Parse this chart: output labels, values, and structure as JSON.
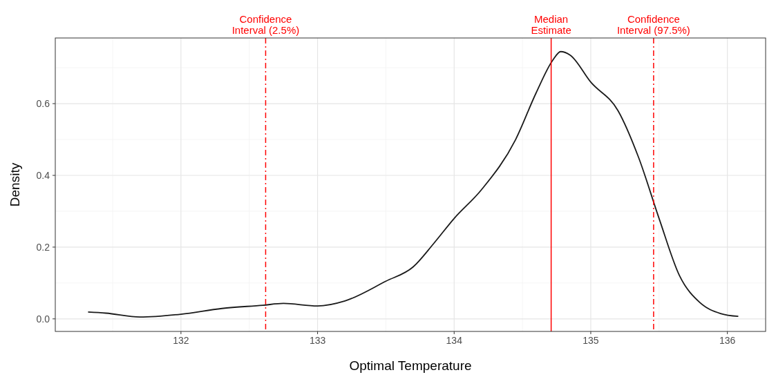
{
  "chart_data": {
    "type": "line",
    "xlabel": "Optimal Temperature",
    "ylabel": "Density",
    "xlim": [
      131.08,
      136.28
    ],
    "xticks": [
      132,
      133,
      134,
      135,
      136
    ],
    "ylim": [
      -0.035,
      0.783
    ],
    "yticks": [
      {
        "value": 0,
        "label": "0.0"
      },
      {
        "value": 0.2,
        "label": "0.2"
      },
      {
        "value": 0.4,
        "label": "0.4"
      },
      {
        "value": 0.6,
        "label": "0.6"
      }
    ],
    "grid": true,
    "line_style": "solid",
    "series": [
      {
        "color": "#1a1a1a",
        "x": [
          131.32,
          131.45,
          131.7,
          132.0,
          132.3,
          132.6,
          132.75,
          133.0,
          133.2,
          133.5,
          133.7,
          133.85,
          134.0,
          134.2,
          134.45,
          134.6,
          134.72,
          134.78,
          134.85,
          135.0,
          135.2,
          135.35,
          135.5,
          135.65,
          135.8,
          135.95,
          136.08
        ],
        "values": [
          0.019,
          0.016,
          0.005,
          0.013,
          0.029,
          0.038,
          0.043,
          0.036,
          0.05,
          0.105,
          0.145,
          0.21,
          0.28,
          0.36,
          0.5,
          0.63,
          0.72,
          0.745,
          0.735,
          0.66,
          0.58,
          0.45,
          0.28,
          0.12,
          0.045,
          0.015,
          0.007
        ]
      }
    ],
    "ref_lines": [
      {
        "axis": "x",
        "value": 132.62,
        "label": "Confidence\nInterval (2.5%)",
        "color": "#ff0000",
        "line_style": "dashed"
      },
      {
        "axis": "x",
        "value": 134.71,
        "label": "Median\nEstimate",
        "color": "#ff0000",
        "line_style": "solid"
      },
      {
        "axis": "x",
        "value": 135.46,
        "label": "Confidence\nInterval (97.5%)",
        "color": "#ff0000",
        "line_style": "dashed"
      }
    ]
  }
}
